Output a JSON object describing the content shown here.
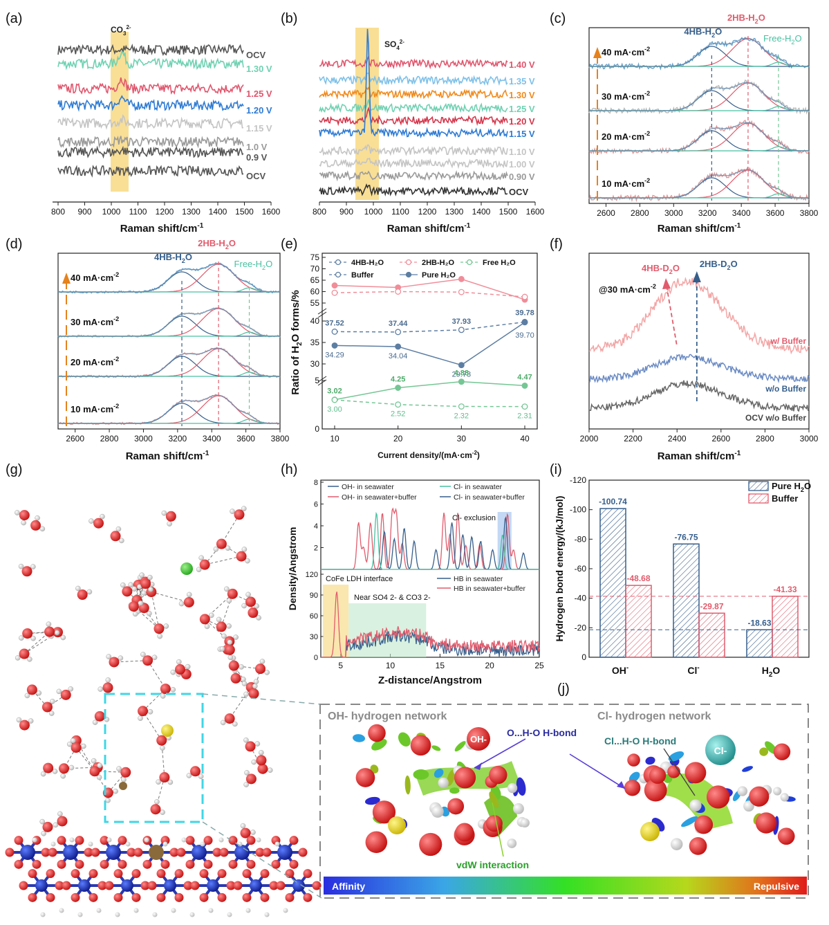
{
  "figure": {
    "panel_letters": [
      "(a)",
      "(b)",
      "(c)",
      "(d)",
      "(e)",
      "(f)",
      "(g)",
      "(h)",
      "(i)",
      "(j)"
    ]
  },
  "colors": {
    "pink": "#e0566d",
    "teal": "#6fd1b2",
    "blue": "#2e7bd4",
    "lightgray": "#c4c4c4",
    "gray": "#9a9a9a",
    "dark": "#555555",
    "orange": "#f08a1c",
    "lightblue": "#7ec0e8",
    "red": "#d4364b",
    "ocv": "#333333",
    "highlight": "#f7d77a",
    "navy": "#2f5677",
    "dpink": "#e15b6c",
    "mint": "#74c694",
    "h_blue": "#355e8b",
    "h_pink": "#e15b6c",
    "h_teal": "#48c0a0"
  },
  "chart_data": [
    {
      "id": "a",
      "type": "line",
      "title": "",
      "xlabel": "Raman shift/cm-1",
      "ylabel": "",
      "xlim": [
        800,
        1600
      ],
      "xticks": [
        800,
        900,
        1000,
        1100,
        1200,
        1300,
        1400,
        1500,
        1600
      ],
      "highlight": {
        "label": "CO3 2-",
        "range": [
          1000,
          1065
        ]
      },
      "series": [
        {
          "name": "OCV",
          "label": "OCV",
          "color": "dark",
          "peak": 0
        },
        {
          "name": "1.30 V",
          "label": "1.30 V",
          "color": "teal",
          "peak": 1.0
        },
        {
          "name": "1.25 V",
          "label": "1.25 V",
          "color": "pink",
          "peak": 0.9
        },
        {
          "name": "1.20 V",
          "label": "1.20 V",
          "color": "blue",
          "peak": 0.7
        },
        {
          "name": "1.15 V",
          "label": "1.15 V",
          "color": "lightgray",
          "peak": 0.3
        },
        {
          "name": "1.0 V",
          "label": "1.0 V",
          "color": "gray",
          "peak": 0.2
        },
        {
          "name": "0.9 V",
          "label": "0.9 V",
          "color": "dark",
          "peak": 0.2
        },
        {
          "name": "OCV",
          "label": "OCV",
          "color": "dark",
          "peak": 0
        }
      ]
    },
    {
      "id": "b",
      "type": "line",
      "xlabel": "Raman shift/cm-1",
      "xlim": [
        800,
        1600
      ],
      "xticks": [
        800,
        900,
        1000,
        1100,
        1200,
        1300,
        1400,
        1500,
        1600
      ],
      "highlight": {
        "label": "SO4 2-",
        "range": [
          930,
          1025
        ]
      },
      "series": [
        {
          "label": "1.40 V",
          "color": "pink",
          "peak": 0.3
        },
        {
          "label": "1.35 V",
          "color": "lightblue",
          "peak": 0.4
        },
        {
          "label": "1.30 V",
          "color": "orange",
          "peak": 0.4
        },
        {
          "label": "1.25 V",
          "color": "teal",
          "peak": 0.5
        },
        {
          "label": "1.20 V",
          "color": "red",
          "peak": 0.6
        },
        {
          "label": "1.15 V",
          "color": "blue",
          "peak": 1.0
        },
        {
          "label": "1.10 V",
          "color": "lightgray",
          "peak": 0.3
        },
        {
          "label": "1.00 V",
          "color": "lightgray",
          "peak": 0.3
        },
        {
          "label": "0.90 V",
          "color": "gray",
          "peak": 0.3
        },
        {
          "label": "OCV",
          "color": "ocv",
          "peak": 0.4
        }
      ]
    },
    {
      "id": "c",
      "type": "line",
      "xlabel": "Raman shift/cm-1",
      "xlim": [
        2500,
        3800
      ],
      "xticks": [
        2600,
        2800,
        3000,
        3200,
        3400,
        3600,
        3800
      ],
      "peak_labels": [
        "4HB-H2O",
        "2HB-H2O",
        "Free-H2O"
      ],
      "peak_centers": [
        3225,
        3440,
        3620
      ],
      "series": [
        {
          "label": "40 mA·cm-2"
        },
        {
          "label": "30 mA·cm-2"
        },
        {
          "label": "20 mA·cm-2"
        },
        {
          "label": "10 mA·cm-2"
        }
      ]
    },
    {
      "id": "d",
      "type": "line",
      "xlabel": "Raman shift/cm-1",
      "xlim": [
        2500,
        3800
      ],
      "xticks": [
        2600,
        2800,
        3000,
        3200,
        3400,
        3600,
        3800
      ],
      "peak_labels": [
        "4HB-H2O",
        "2HB-H2O",
        "Free-H2O"
      ],
      "peak_centers": [
        3225,
        3440,
        3620
      ],
      "series": [
        {
          "label": "40 mA·cm-2"
        },
        {
          "label": "30 mA·cm-2"
        },
        {
          "label": "20 mA·cm-2"
        },
        {
          "label": "10 mA·cm-2"
        }
      ]
    },
    {
      "id": "e",
      "type": "line",
      "xlabel": "Current density/(mA·cm-2)",
      "ylabel": "Ratio of H2O forms/%",
      "x": [
        10,
        20,
        30,
        40
      ],
      "legend": [
        "4HB-H2O",
        "2HB-H2O",
        "Free H2O",
        "Buffer",
        "Pure H2O"
      ],
      "series": [
        {
          "name": "2HB Pure",
          "values": [
            62.7,
            61.8,
            65.5,
            56.5
          ],
          "color": "pink",
          "style": "solid"
        },
        {
          "name": "2HB Buffer",
          "values": [
            59.5,
            60.0,
            59.8,
            57.7
          ],
          "color": "pink",
          "style": "dash"
        },
        {
          "name": "4HB Buffer",
          "values": [
            37.52,
            37.44,
            37.93,
            39.78
          ],
          "color": "navy",
          "style": "dash",
          "labels": [
            "37.52",
            "37.44",
            "37.93",
            "39.78"
          ]
        },
        {
          "name": "4HB Pure",
          "values": [
            34.29,
            34.04,
            29.73,
            39.7
          ],
          "color": "navy",
          "style": "solid",
          "labels": [
            "34.29",
            "34.04",
            "29.73",
            "39.70"
          ]
        },
        {
          "name": "Free Pure",
          "values": [
            3.02,
            4.25,
            4.88,
            4.47
          ],
          "color": "mint",
          "style": "solid",
          "labels": [
            "3.02",
            "4.25",
            "4.88",
            "4.47"
          ]
        },
        {
          "name": "Free Buffer",
          "values": [
            3.0,
            2.52,
            2.32,
            2.31
          ],
          "color": "mint",
          "style": "dash",
          "labels": [
            "3.00",
            "2.52",
            "2.32",
            "2.31"
          ]
        }
      ],
      "yticks_top": [
        55,
        60,
        65,
        70,
        75
      ],
      "yticks_mid": [
        30,
        35,
        40
      ],
      "yticks_bot": [
        0,
        5
      ]
    },
    {
      "id": "f",
      "type": "line",
      "xlabel": "Raman shift/cm-1",
      "xlim": [
        2000,
        3000
      ],
      "xticks": [
        2000,
        2200,
        2400,
        2600,
        2800,
        3000
      ],
      "annotation": "@30 mA·cm-2",
      "peak_labels": [
        "4HB-D2O",
        "2HB-D2O"
      ],
      "peak_centers": [
        2390,
        2490
      ],
      "series": [
        {
          "label": "w/ Buffer"
        },
        {
          "label": "w/o Buffer"
        },
        {
          "label": "OCV w/o Buffer"
        }
      ]
    },
    {
      "id": "h",
      "type": "line",
      "xlabel": "Z-distance/Angstrom",
      "ylabel": "Density/Angstrom",
      "xlim": [
        3,
        25
      ],
      "xticks": [
        5,
        10,
        15,
        20,
        25
      ],
      "top": {
        "ylim": [
          0,
          8
        ],
        "yticks": [
          0,
          2,
          4,
          6,
          8
        ],
        "legend": [
          "OH- in seawater",
          "Cl- in seawater",
          "OH- in seawater+buffer",
          "Cl- in seawater+buffer"
        ],
        "annotation": "Cl- exclusion"
      },
      "bottom": {
        "ylim": [
          0,
          120
        ],
        "yticks": [
          0,
          30,
          60,
          90,
          120
        ],
        "legend": [
          "HB in seawater",
          "HB in seawater+buffer"
        ],
        "annotation1": "CoFe LDH interface",
        "annotation2": "Near SO4 2- & CO3 2-"
      }
    },
    {
      "id": "i",
      "type": "bar",
      "ylabel": "Hydrogen bond energy/(kJ/mol)",
      "categories": [
        "OH-",
        "Cl-",
        "H2O"
      ],
      "series": [
        {
          "name": "Pure H2O",
          "values": [
            -100.74,
            -76.75,
            -18.63
          ],
          "labels": [
            "-100.74",
            "-76.75",
            "-18.63"
          ]
        },
        {
          "name": "Buffer",
          "values": [
            -48.68,
            -29.87,
            -41.33
          ],
          "labels": [
            "-48.68",
            "-29.87",
            "-41.33"
          ]
        }
      ],
      "ylim": [
        0,
        -120
      ],
      "yticks": [
        0,
        -20,
        -40,
        -60,
        -80,
        -100,
        -120
      ]
    }
  ],
  "panel_j": {
    "left_title": "OH- hydrogen network",
    "right_title": "Cl- hydrogen network",
    "label_ohbond": "O...H-O H-bond",
    "label_clbond": "Cl...H-O H-bond",
    "label_vdw": "vdW interaction",
    "label_ion_oh": "OH-",
    "label_ion_cl": "Cl-",
    "scale_left": "Affinity",
    "scale_right": "Repulsive"
  }
}
